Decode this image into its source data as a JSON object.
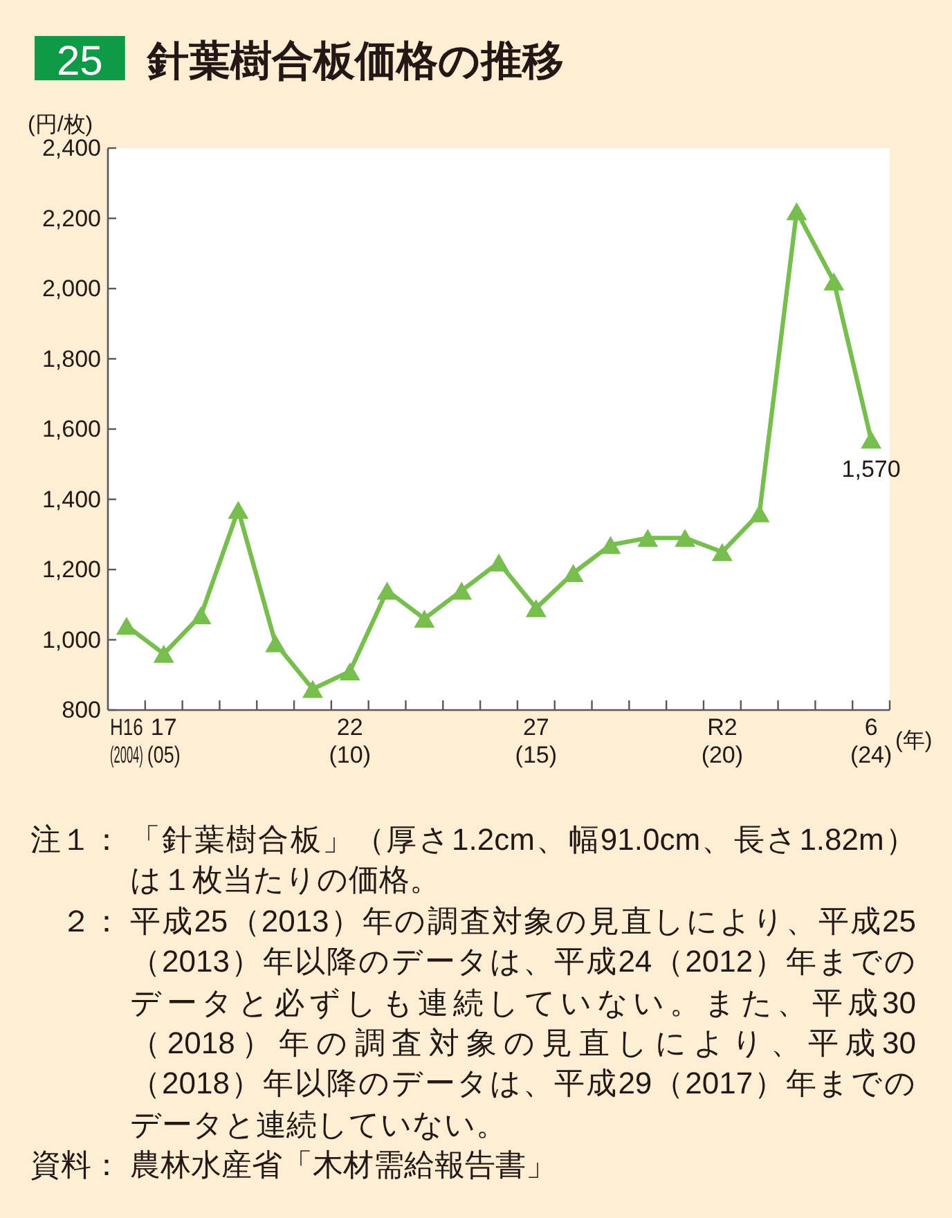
{
  "chart_data": {
    "type": "line",
    "title": "25 針葉樹合板価格の推移",
    "ylabel": "(円/枚)",
    "xlabel": "(年)",
    "categories": [
      "H16\n(2004)",
      "17\n(05)",
      null,
      null,
      null,
      null,
      "22\n(10)",
      null,
      null,
      null,
      null,
      "27\n(15)",
      null,
      null,
      null,
      null,
      "R2\n(20)",
      null,
      null,
      null,
      "6\n(24)"
    ],
    "values": [
      1040,
      960,
      1070,
      1370,
      990,
      860,
      910,
      1140,
      1060,
      1140,
      1220,
      1090,
      1190,
      1270,
      1290,
      1290,
      1250,
      1360,
      2220,
      2020,
      1570
    ],
    "value_labels": [
      null,
      null,
      null,
      null,
      null,
      null,
      null,
      null,
      null,
      null,
      null,
      null,
      null,
      null,
      null,
      null,
      null,
      null,
      null,
      null,
      "1,570"
    ],
    "color": "#78be4f",
    "marker": "triangle",
    "ylim": [
      800,
      2400
    ],
    "yticks": [
      800,
      {
        "value": 1000,
        "label": "1,000"
      },
      {
        "value": 1200,
        "label": "1,200"
      },
      {
        "value": 1400,
        "label": "1,400"
      },
      {
        "value": 1600,
        "label": "1,600"
      },
      {
        "value": 1800,
        "label": "1,800"
      },
      {
        "value": 2000,
        "label": "2,000"
      },
      {
        "value": 2200,
        "label": "2,200"
      },
      {
        "value": 2400,
        "label": "2,400"
      }
    ],
    "annotations": [
      "注１：「針葉樹合板」（厚さ1.2cm、幅91.0cm、長さ1.82m）は１枚当たりの価格。",
      "２：平成25（2013）年の調査対象の見直しにより、平成25（2013）年以降のデータは、平成24（2012）年までのデータと必ずしも連続していない。また、平成30（2018）年の調査対象の見直しにより、平成30（2018）年以降のデータは、平成29（2017）年までのデータと連続していない。",
      "資料：農林水産省「木材需給報告書」"
    ]
  }
}
